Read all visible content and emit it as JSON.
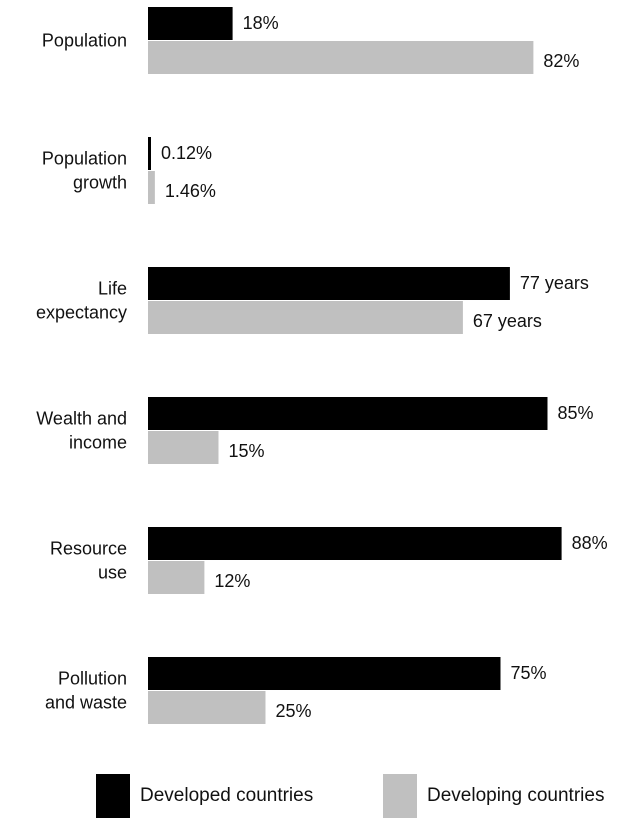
{
  "chart_data": {
    "type": "bar",
    "orientation": "horizontal",
    "categories": [
      [
        "Population"
      ],
      [
        "Population",
        "growth"
      ],
      [
        "Life",
        "expectancy"
      ],
      [
        "Wealth and",
        "income"
      ],
      [
        "Resource",
        "use"
      ],
      [
        "Pollution",
        "and waste"
      ]
    ],
    "series": [
      {
        "name": "Developed countries",
        "color": "#000000",
        "values": [
          18,
          0.12,
          77,
          85,
          88,
          75
        ],
        "labels": [
          "18%",
          "0.12%",
          "77 years",
          "85%",
          "88%",
          "75%"
        ]
      },
      {
        "name": "Developing countries",
        "color": "#c0c0c0",
        "values": [
          82,
          1.46,
          67,
          15,
          12,
          25
        ],
        "labels": [
          "82%",
          "1.46%",
          "67 years",
          "15%",
          "12%",
          "25%"
        ]
      }
    ],
    "grid": false,
    "legend_position": "bottom"
  }
}
